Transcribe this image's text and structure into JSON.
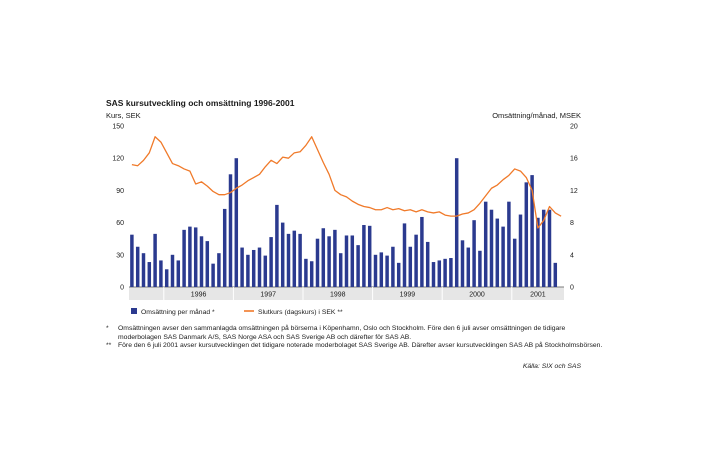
{
  "title": "SAS kursutveckling och omsättning 1996-2001",
  "colors": {
    "bar": "#2b3a8f",
    "line": "#f07a2a",
    "band": "#e6e6e6",
    "axis": "#555555"
  },
  "chart_data": {
    "type": "bar+line",
    "title": "SAS kursutveckling och omsättning 1996-2001",
    "ylabel_left": "Kurs, SEK",
    "ylabel_right": "Omsättning/månad, MSEK",
    "ylim_left": [
      0,
      150
    ],
    "ylim_right": [
      0,
      20
    ],
    "yticks_left": [
      "0",
      "30",
      "60",
      "90",
      "120",
      "150"
    ],
    "yticks_right": [
      "0",
      "4",
      "8",
      "12",
      "16",
      "20"
    ],
    "years": [
      "1996",
      "1997",
      "1998",
      "1999",
      "2000",
      "2001"
    ],
    "x_start": "1995-07",
    "x_end": "2001-09",
    "grid": false,
    "legend_position": "bottom-left",
    "series": [
      {
        "name": "Omsättning per månad *",
        "type": "bar",
        "axis": "right",
        "months": [
          "1995-07",
          "1995-08",
          "1995-09",
          "1995-10",
          "1995-11",
          "1995-12",
          "1996-01",
          "1996-02",
          "1996-03",
          "1996-04",
          "1996-05",
          "1996-06",
          "1996-07",
          "1996-08",
          "1996-09",
          "1996-10",
          "1996-11",
          "1996-12",
          "1997-01",
          "1997-02",
          "1997-03",
          "1997-04",
          "1997-05",
          "1997-06",
          "1997-07",
          "1997-08",
          "1997-09",
          "1997-10",
          "1997-11",
          "1997-12",
          "1998-01",
          "1998-02",
          "1998-03",
          "1998-04",
          "1998-05",
          "1998-06",
          "1998-07",
          "1998-08",
          "1998-09",
          "1998-10",
          "1998-11",
          "1998-12",
          "1999-01",
          "1999-02",
          "1999-03",
          "1999-04",
          "1999-05",
          "1999-06",
          "1999-07",
          "1999-08",
          "1999-09",
          "1999-10",
          "1999-11",
          "1999-12",
          "2000-01",
          "2000-02",
          "2000-03",
          "2000-04",
          "2000-05",
          "2000-06",
          "2000-07",
          "2000-08",
          "2000-09",
          "2000-10",
          "2000-11",
          "2000-12",
          "2001-01",
          "2001-02",
          "2001-03",
          "2001-04",
          "2001-05",
          "2001-06",
          "2001-07",
          "2001-08"
        ],
        "values": [
          6.5,
          5.0,
          4.2,
          3.1,
          6.6,
          3.3,
          2.2,
          4.0,
          3.3,
          7.1,
          7.5,
          7.4,
          6.3,
          5.7,
          2.9,
          4.2,
          9.7,
          14.0,
          16.0,
          4.9,
          4.0,
          4.6,
          4.9,
          3.9,
          6.2,
          10.2,
          8.0,
          6.6,
          7.0,
          6.6,
          3.5,
          3.2,
          6.0,
          7.3,
          6.3,
          7.1,
          4.2,
          6.4,
          6.4,
          5.2,
          7.7,
          7.6,
          4.0,
          4.3,
          3.9,
          5.0,
          3.0,
          7.9,
          5.0,
          6.5,
          8.7,
          5.6,
          3.1,
          3.3,
          3.5,
          3.6,
          16.0,
          5.8,
          4.9,
          8.3,
          4.5,
          10.6,
          9.6,
          8.5,
          7.5,
          10.6,
          6.0,
          9.0,
          13.0,
          13.9,
          8.6,
          9.6,
          9.6,
          3.0
        ]
      },
      {
        "name": "Slutkurs (dagskurs) i SEK **",
        "type": "line",
        "axis": "left",
        "points": [
          [
            "1995-07",
            114
          ],
          [
            "1995-08",
            113
          ],
          [
            "1995-09",
            118
          ],
          [
            "1995-10",
            125
          ],
          [
            "1995-11",
            140
          ],
          [
            "1995-12",
            135
          ],
          [
            "1996-01",
            125
          ],
          [
            "1996-02",
            115
          ],
          [
            "1996-03",
            113
          ],
          [
            "1996-04",
            110
          ],
          [
            "1996-05",
            108
          ],
          [
            "1996-06",
            96
          ],
          [
            "1996-07",
            98
          ],
          [
            "1996-08",
            94
          ],
          [
            "1996-09",
            89
          ],
          [
            "1996-10",
            86
          ],
          [
            "1996-11",
            86
          ],
          [
            "1996-12",
            88
          ],
          [
            "1997-01",
            92
          ],
          [
            "1997-02",
            95
          ],
          [
            "1997-03",
            99
          ],
          [
            "1997-04",
            102
          ],
          [
            "1997-05",
            105
          ],
          [
            "1997-06",
            112
          ],
          [
            "1997-07",
            118
          ],
          [
            "1997-08",
            115
          ],
          [
            "1997-09",
            121
          ],
          [
            "1997-10",
            120
          ],
          [
            "1997-11",
            125
          ],
          [
            "1997-12",
            126
          ],
          [
            "1998-01",
            132
          ],
          [
            "1998-02",
            140
          ],
          [
            "1998-03",
            128
          ],
          [
            "1998-04",
            116
          ],
          [
            "1998-05",
            105
          ],
          [
            "1998-06",
            90
          ],
          [
            "1998-07",
            86
          ],
          [
            "1998-08",
            84
          ],
          [
            "1998-09",
            80
          ],
          [
            "1998-10",
            77
          ],
          [
            "1998-11",
            75
          ],
          [
            "1998-12",
            74
          ],
          [
            "1999-01",
            72
          ],
          [
            "1999-02",
            72
          ],
          [
            "1999-03",
            74
          ],
          [
            "1999-04",
            72
          ],
          [
            "1999-05",
            73
          ],
          [
            "1999-06",
            71
          ],
          [
            "1999-07",
            72
          ],
          [
            "1999-08",
            70
          ],
          [
            "1999-09",
            72
          ],
          [
            "1999-10",
            70
          ],
          [
            "1999-11",
            69
          ],
          [
            "1999-12",
            70
          ],
          [
            "2000-01",
            67
          ],
          [
            "2000-02",
            66
          ],
          [
            "2000-03",
            66
          ],
          [
            "2000-04",
            68
          ],
          [
            "2000-05",
            69
          ],
          [
            "2000-06",
            72
          ],
          [
            "2000-07",
            78
          ],
          [
            "2000-08",
            85
          ],
          [
            "2000-09",
            92
          ],
          [
            "2000-10",
            95
          ],
          [
            "2000-11",
            100
          ],
          [
            "2000-12",
            104
          ],
          [
            "2001-01",
            110
          ],
          [
            "2001-02",
            108
          ],
          [
            "2001-03",
            102
          ],
          [
            "2001-04",
            90
          ],
          [
            "2001-05",
            55
          ],
          [
            "2001-06",
            62
          ],
          [
            "2001-07",
            75
          ],
          [
            "2001-08",
            69
          ],
          [
            "2001-09",
            66
          ]
        ]
      }
    ]
  },
  "notes": [
    {
      "mark": "*",
      "text": "Omsättningen avser den sammanlagda omsättningen på börserna i Köpenhamn, Oslo och Stockholm. Före den 6 juli avser omsättningen de tidigare moderbolagen SAS Danmark A/S, SAS Norge ASA och SAS Sverige AB och därefter för SAS AB."
    },
    {
      "mark": "**",
      "text": "Före den 6 juli 2001 avser kursutvecklingen det tidigare noterade moderbolaget SAS Sverige AB. Därefter avser kursutvecklingen SAS AB på Stockholmsbörsen."
    }
  ],
  "source": "Källa: SIX och SAS"
}
